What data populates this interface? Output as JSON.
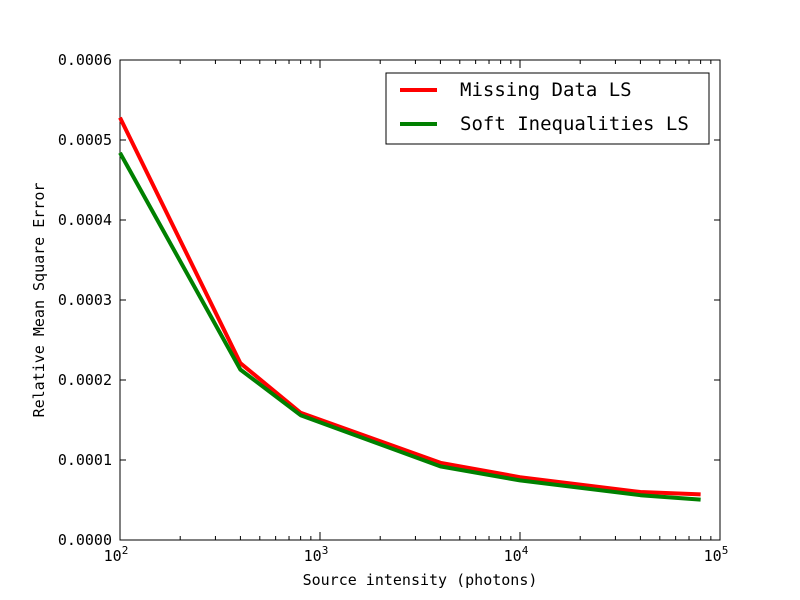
{
  "chart_data": {
    "type": "line",
    "xlabel": "Source intensity (photons)",
    "ylabel": "Relative Mean Square Error",
    "x_scale": "log",
    "xlim": [
      100,
      100000
    ],
    "ylim": [
      0,
      0.0006
    ],
    "x_ticks": [
      {
        "value": 100,
        "base": "10",
        "exp": "2"
      },
      {
        "value": 1000,
        "base": "10",
        "exp": "3"
      },
      {
        "value": 10000,
        "base": "10",
        "exp": "4"
      },
      {
        "value": 100000,
        "base": "10",
        "exp": "5"
      }
    ],
    "y_ticks": [
      {
        "value": 0,
        "label": "0.0000"
      },
      {
        "value": 0.0001,
        "label": "0.0001"
      },
      {
        "value": 0.0002,
        "label": "0.0002"
      },
      {
        "value": 0.0003,
        "label": "0.0003"
      },
      {
        "value": 0.0004,
        "label": "0.0004"
      },
      {
        "value": 0.0005,
        "label": "0.0005"
      },
      {
        "value": 0.0006,
        "label": "0.0006"
      }
    ],
    "grid": false,
    "legend_position": "top-right",
    "series": [
      {
        "name": "Missing Data LS",
        "color": "#ff0000",
        "x": [
          100,
          400,
          800,
          4000,
          10000,
          40000,
          80000
        ],
        "y": [
          0.000528,
          0.000221,
          0.000159,
          9.65e-05,
          7.85e-05,
          6e-05,
          5.7e-05
        ]
      },
      {
        "name": "Soft Inequalities LS",
        "color": "#008000",
        "x": [
          100,
          400,
          800,
          4000,
          10000,
          40000,
          80000
        ],
        "y": [
          0.000484,
          0.000213,
          0.000156,
          9.2e-05,
          7.45e-05,
          5.6e-05,
          5.05e-05
        ]
      }
    ]
  }
}
